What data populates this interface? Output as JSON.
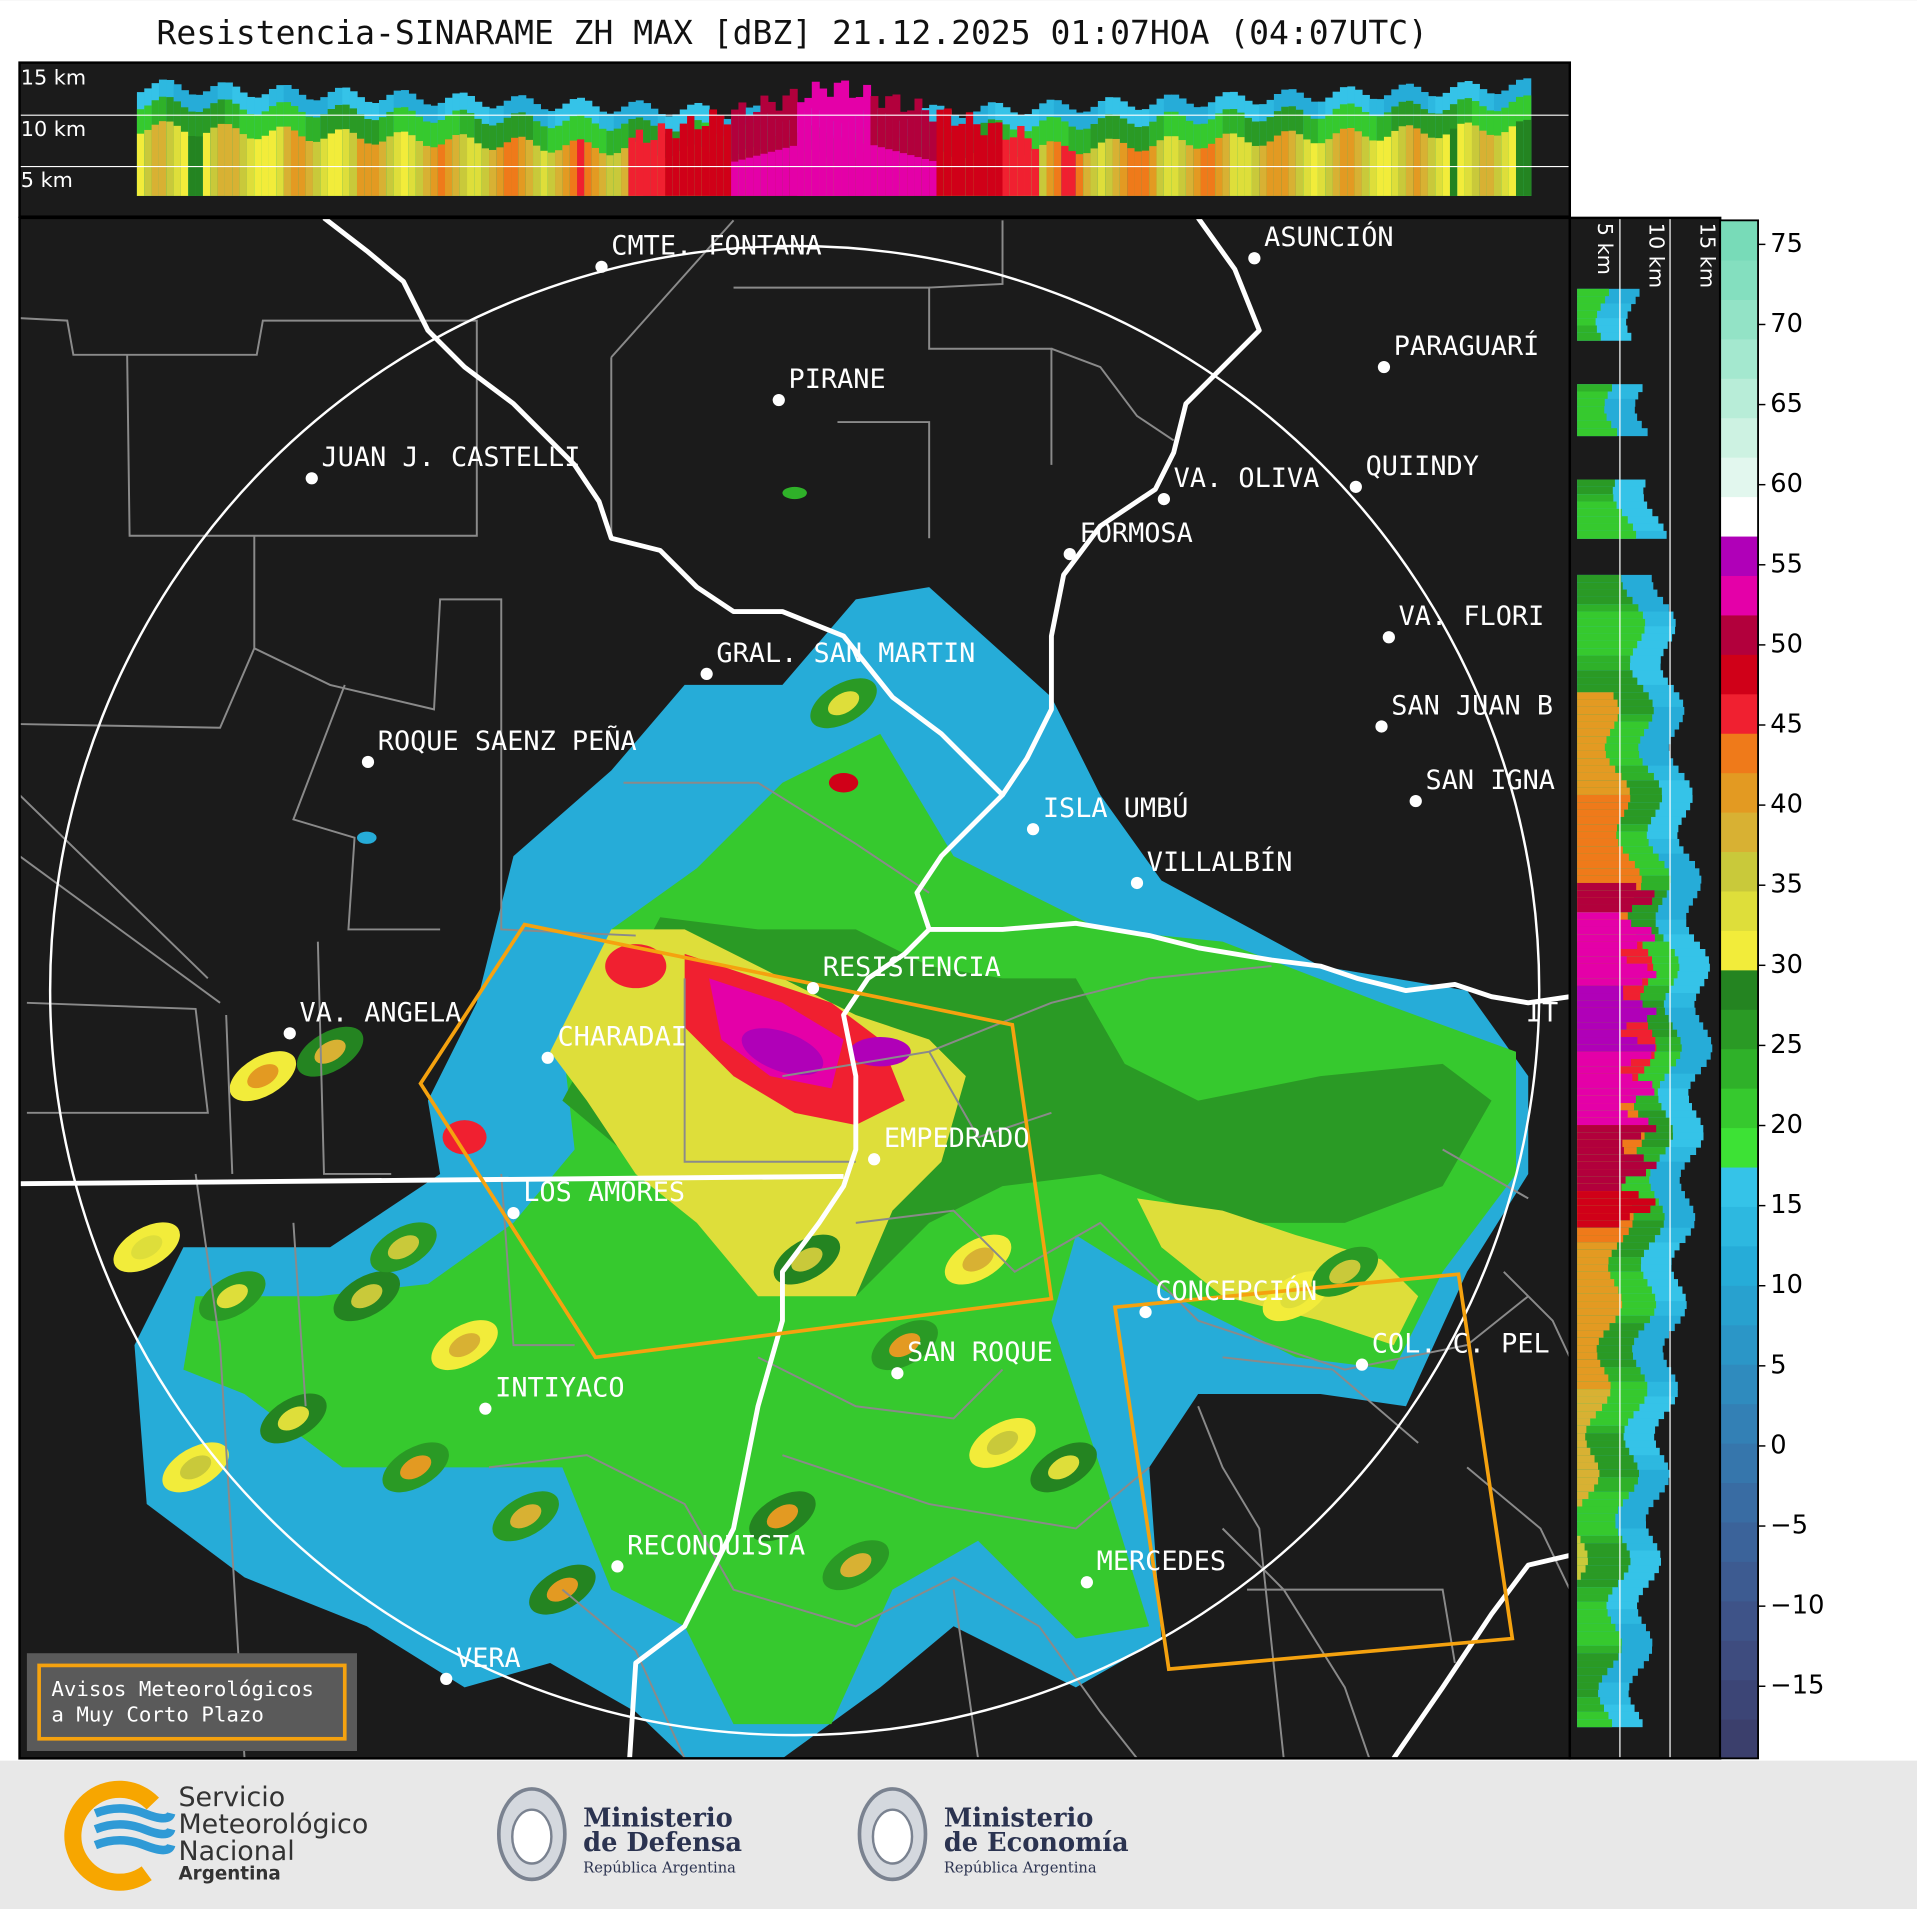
{
  "header": {
    "title": "Resistencia-SINARAME ZH MAX [dBZ] 21.12.2025 01:07HOA (04:07UTC)"
  },
  "top_panel": {
    "height_labels": [
      "15 km",
      "10 km",
      "5 km"
    ]
  },
  "side_panel": {
    "height_labels": [
      "5 km",
      "10 km",
      "15 km"
    ]
  },
  "colorbar": {
    "range": [
      -19.5,
      76.5
    ],
    "ticks": [
      {
        "value": -15,
        "label": "−15"
      },
      {
        "value": -10,
        "label": "−10"
      },
      {
        "value": -5,
        "label": "−5"
      },
      0,
      5,
      10,
      15,
      20,
      25,
      30,
      35,
      40,
      45,
      50,
      55,
      60,
      65,
      70,
      75
    ]
  },
  "cities": [
    "CMTE. FONTANA",
    "PIRANE",
    "JUAN J. CASTELLI",
    "VA. OLIVA",
    "QUIINDY",
    "FORMOSA",
    "ASUNCIÓN",
    "PARAGUARÍ",
    "VA. FLORI",
    "SAN JUAN B",
    "SAN IGNA",
    "GRAL. SAN MARTIN",
    "ROQUE SAENZ PEÑA",
    "ISLA UMBÚ",
    "VILLALBÍN",
    "RESISTENCIA",
    "VA. ANGELA",
    "IT",
    "CHARADAI",
    "EMPEDRADO",
    "LOS AMORES",
    "CONCEPCIÓN",
    "COL. C. PEL",
    "SAN ROQUE",
    "INTIYACO",
    "RECONQUISTA",
    "MERCEDES",
    "VERA"
  ],
  "legend_box": {
    "lines": [
      "Avisos Meteorológicos",
      "a Muy Corto Plazo"
    ]
  },
  "footer": {
    "smn": [
      "Servicio",
      "Meteorológico",
      "Nacional",
      "Argentina"
    ],
    "defensa": [
      "Ministerio",
      "de Defensa",
      "República Argentina"
    ],
    "economia": [
      "Ministerio",
      "de Economía",
      "República Argentina"
    ]
  }
}
